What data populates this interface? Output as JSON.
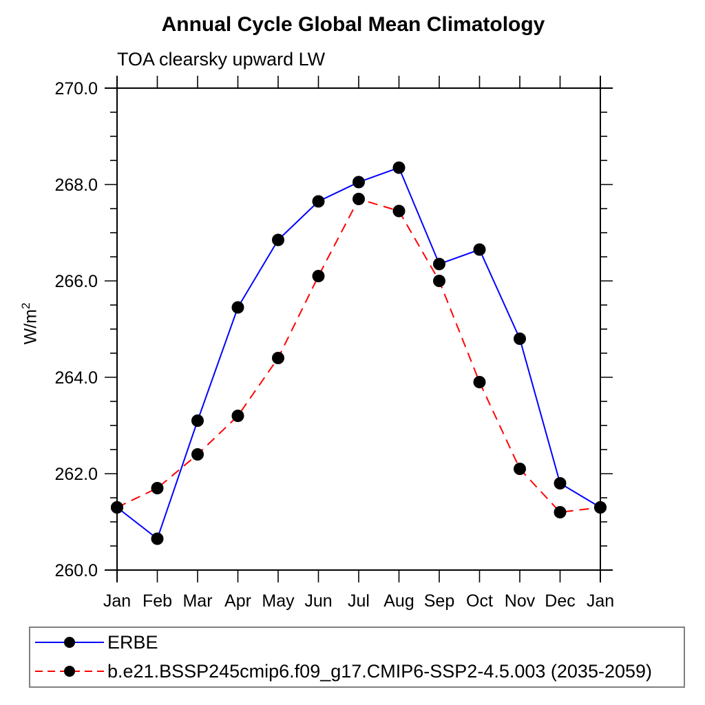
{
  "title": "Annual Cycle Global Mean Climatology",
  "subtitle": "TOA clearsky upward LW",
  "y_axis": {
    "unit_base": "W/m",
    "unit_exponent": "2",
    "tick_labels": [
      "260.0",
      "262.0",
      "264.0",
      "266.0",
      "268.0",
      "270.0"
    ]
  },
  "x_axis": {
    "tick_labels": [
      "Jan",
      "Feb",
      "Mar",
      "Apr",
      "May",
      "Jun",
      "Jul",
      "Aug",
      "Sep",
      "Oct",
      "Nov",
      "Dec",
      "Jan"
    ]
  },
  "legend": {
    "entries": [
      {
        "label": "ERBE"
      },
      {
        "label": "b.e21.BSSP245cmip6.f09_g17.CMIP6-SSP2-4.5.003 (2035-2059)"
      }
    ]
  },
  "colors": {
    "erbe_line": "#0000ff",
    "model_line": "#ff0000",
    "marker": "#000000",
    "axis": "#000000",
    "legend_border": "#7f7f7f"
  },
  "chart_data": {
    "type": "line",
    "title": "Annual Cycle Global Mean Climatology",
    "subtitle": "TOA clearsky upward LW",
    "xlabel": "",
    "ylabel": "W/m^2",
    "categories": [
      "Jan",
      "Feb",
      "Mar",
      "Apr",
      "May",
      "Jun",
      "Jul",
      "Aug",
      "Sep",
      "Oct",
      "Nov",
      "Dec",
      "Jan"
    ],
    "series": [
      {
        "name": "ERBE",
        "color": "#0000ff",
        "line_style": "solid",
        "marker": "filled-circle",
        "marker_color": "#000000",
        "values": [
          261.3,
          260.65,
          263.1,
          265.45,
          266.85,
          267.65,
          268.05,
          268.35,
          266.35,
          266.65,
          264.8,
          261.8,
          261.3
        ]
      },
      {
        "name": "b.e21.BSSP245cmip6.f09_g17.CMIP6-SSP2-4.5.003 (2035-2059)",
        "color": "#ff0000",
        "line_style": "dashed",
        "marker": "filled-circle",
        "marker_color": "#000000",
        "values": [
          261.3,
          261.7,
          262.4,
          263.2,
          264.4,
          266.1,
          267.7,
          267.45,
          266.0,
          263.9,
          262.1,
          261.2,
          261.3
        ]
      }
    ],
    "ylim": [
      260.0,
      270.0
    ],
    "ytick_step": 2.0,
    "yminor_step": 0.5,
    "ytick_format": "one-decimal",
    "grid": false,
    "tick_style": "outward-all-four-sides",
    "legend_position": "bottom-left-box"
  }
}
